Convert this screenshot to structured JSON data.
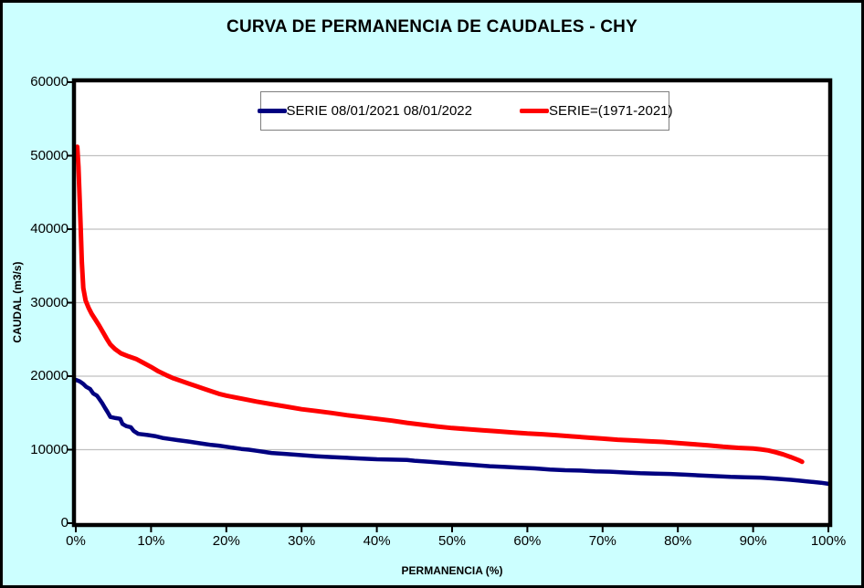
{
  "title": "CURVA DE PERMANENCIA DE CAUDALES - CHY",
  "legend": {
    "items": [
      {
        "label": "SERIE 08/01/2021 08/01/2022",
        "color": "#000080"
      },
      {
        "label": "SERIE=(1971-2021)",
        "color": "#FF0000"
      }
    ]
  },
  "axes": {
    "x": {
      "title": "PERMANENCIA (%)",
      "tick_values": [
        0,
        10,
        20,
        30,
        40,
        50,
        60,
        70,
        80,
        90,
        100
      ],
      "tick_labels": [
        "0%",
        "10%",
        "20%",
        "30%",
        "40%",
        "50%",
        "60%",
        "70%",
        "80%",
        "90%",
        "100%"
      ]
    },
    "y": {
      "title": "CAUDAL (m3/s)",
      "tick_values": [
        0,
        10000,
        20000,
        30000,
        40000,
        50000,
        60000
      ],
      "tick_labels": [
        "0",
        "10000",
        "20000",
        "30000",
        "40000",
        "50000",
        "60000"
      ]
    }
  },
  "colors": {
    "background": "#CCFFFF",
    "plot_background": "#FFFFFF",
    "gridline": "#C0C0C0",
    "axis_border": "#000000",
    "series_blue": "#000080",
    "series_red": "#FF0000"
  },
  "chart_data": {
    "type": "line",
    "title": "CURVA DE PERMANENCIA DE CAUDALES - CHY",
    "xlabel": "PERMANENCIA (%)",
    "ylabel": "CAUDAL (m3/s)",
    "xlim": [
      0,
      100
    ],
    "ylim": [
      0,
      60000
    ],
    "x_tick_step": 10,
    "y_tick_step": 10000,
    "grid": "horizontal-only",
    "legend_position": "top-center",
    "series": [
      {
        "name": "SERIE 08/01/2021 08/01/2022",
        "color": "#000080",
        "stroke_width": 4.5,
        "points": [
          [
            0,
            19500
          ],
          [
            0.5,
            19300
          ],
          [
            1,
            18950
          ],
          [
            1.4,
            18550
          ],
          [
            1.9,
            18250
          ],
          [
            2.3,
            17650
          ],
          [
            2.8,
            17350
          ],
          [
            3.1,
            16950
          ],
          [
            3.5,
            16350
          ],
          [
            3.9,
            15650
          ],
          [
            4.2,
            15150
          ],
          [
            4.6,
            14450
          ],
          [
            5.3,
            14300
          ],
          [
            5.9,
            14200
          ],
          [
            6.2,
            13500
          ],
          [
            6.7,
            13200
          ],
          [
            7.3,
            13050
          ],
          [
            7.7,
            12550
          ],
          [
            8.3,
            12150
          ],
          [
            9.5,
            12000
          ],
          [
            10.5,
            11850
          ],
          [
            11.5,
            11600
          ],
          [
            12.5,
            11450
          ],
          [
            13.5,
            11300
          ],
          [
            15,
            11100
          ],
          [
            16,
            10950
          ],
          [
            17,
            10800
          ],
          [
            18,
            10650
          ],
          [
            19,
            10550
          ],
          [
            20,
            10400
          ],
          [
            21,
            10250
          ],
          [
            22,
            10100
          ],
          [
            23,
            10000
          ],
          [
            24,
            9850
          ],
          [
            25,
            9700
          ],
          [
            26,
            9550
          ],
          [
            28,
            9400
          ],
          [
            30,
            9250
          ],
          [
            32,
            9100
          ],
          [
            34,
            9000
          ],
          [
            36,
            8900
          ],
          [
            38,
            8800
          ],
          [
            40,
            8700
          ],
          [
            42,
            8650
          ],
          [
            44,
            8600
          ],
          [
            45,
            8500
          ],
          [
            47,
            8350
          ],
          [
            49,
            8200
          ],
          [
            51,
            8050
          ],
          [
            53,
            7900
          ],
          [
            55,
            7750
          ],
          [
            57,
            7650
          ],
          [
            59,
            7550
          ],
          [
            61,
            7450
          ],
          [
            63,
            7300
          ],
          [
            65,
            7200
          ],
          [
            67,
            7150
          ],
          [
            69,
            7050
          ],
          [
            71,
            7000
          ],
          [
            73,
            6900
          ],
          [
            75,
            6800
          ],
          [
            77,
            6750
          ],
          [
            79,
            6700
          ],
          [
            81,
            6600
          ],
          [
            83,
            6500
          ],
          [
            85,
            6400
          ],
          [
            87,
            6300
          ],
          [
            89,
            6250
          ],
          [
            91,
            6200
          ],
          [
            93,
            6050
          ],
          [
            95,
            5900
          ],
          [
            96,
            5800
          ],
          [
            97,
            5700
          ],
          [
            98,
            5600
          ],
          [
            99,
            5500
          ],
          [
            100,
            5350
          ]
        ]
      },
      {
        "name": "SERIE=(1971-2021)",
        "color": "#FF0000",
        "stroke_width": 5,
        "points": [
          [
            0.2,
            51200
          ],
          [
            0.35,
            48500
          ],
          [
            0.5,
            44500
          ],
          [
            0.65,
            40000
          ],
          [
            0.8,
            35500
          ],
          [
            1,
            32000
          ],
          [
            1.3,
            30300
          ],
          [
            1.7,
            29300
          ],
          [
            2.1,
            28500
          ],
          [
            2.6,
            27700
          ],
          [
            3.1,
            26900
          ],
          [
            3.6,
            26000
          ],
          [
            4.1,
            25100
          ],
          [
            4.6,
            24300
          ],
          [
            5.2,
            23700
          ],
          [
            6,
            23100
          ],
          [
            7,
            22700
          ],
          [
            8,
            22350
          ],
          [
            9,
            21800
          ],
          [
            10,
            21250
          ],
          [
            11,
            20650
          ],
          [
            12,
            20150
          ],
          [
            13,
            19700
          ],
          [
            14,
            19350
          ],
          [
            15,
            19000
          ],
          [
            16,
            18650
          ],
          [
            17,
            18300
          ],
          [
            18,
            17950
          ],
          [
            19,
            17600
          ],
          [
            20,
            17350
          ],
          [
            22,
            16950
          ],
          [
            24,
            16550
          ],
          [
            26,
            16200
          ],
          [
            28,
            15850
          ],
          [
            30,
            15500
          ],
          [
            32,
            15250
          ],
          [
            34,
            15000
          ],
          [
            36,
            14700
          ],
          [
            38,
            14450
          ],
          [
            40,
            14200
          ],
          [
            42,
            13950
          ],
          [
            44,
            13650
          ],
          [
            46,
            13400
          ],
          [
            48,
            13150
          ],
          [
            50,
            12950
          ],
          [
            52,
            12800
          ],
          [
            54,
            12650
          ],
          [
            56,
            12500
          ],
          [
            58,
            12350
          ],
          [
            60,
            12200
          ],
          [
            62,
            12100
          ],
          [
            64,
            11950
          ],
          [
            66,
            11800
          ],
          [
            68,
            11650
          ],
          [
            70,
            11500
          ],
          [
            72,
            11350
          ],
          [
            74,
            11250
          ],
          [
            76,
            11150
          ],
          [
            78,
            11050
          ],
          [
            80,
            10900
          ],
          [
            82,
            10750
          ],
          [
            84,
            10600
          ],
          [
            86,
            10400
          ],
          [
            88,
            10250
          ],
          [
            90,
            10150
          ],
          [
            91,
            10050
          ],
          [
            92,
            9900
          ],
          [
            93,
            9650
          ],
          [
            94,
            9350
          ],
          [
            95,
            9000
          ],
          [
            96,
            8600
          ],
          [
            96.5,
            8350
          ]
        ]
      }
    ]
  }
}
